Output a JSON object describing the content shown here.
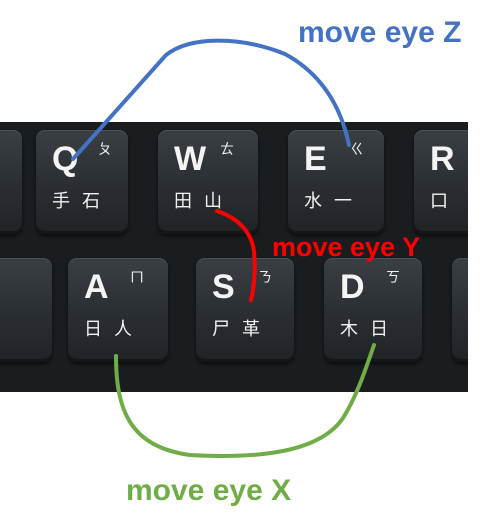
{
  "keyboard": {
    "top_row": [
      {
        "latin": "Q",
        "zhuyin": "ㄆ",
        "cangjie": "手石"
      },
      {
        "latin": "W",
        "zhuyin": "ㄊ",
        "cangjie": "田山"
      },
      {
        "latin": "E",
        "zhuyin": "ㄍ",
        "cangjie": "水一"
      },
      {
        "latin": "R",
        "zhuyin": "",
        "cangjie": "口"
      }
    ],
    "home_row": [
      {
        "latin": "A",
        "zhuyin": "ㄇ",
        "cangjie": "日人"
      },
      {
        "latin": "S",
        "zhuyin": "ㄋ",
        "cangjie": "尸革"
      },
      {
        "latin": "D",
        "zhuyin": "ㄎ",
        "cangjie": "木日"
      }
    ]
  },
  "annotations": {
    "z": {
      "text": "move eye Z",
      "color": "#4472c4"
    },
    "y": {
      "text": "move eye Y",
      "color": "#ff0000"
    },
    "x": {
      "text": "move eye X",
      "color": "#70ad47"
    }
  }
}
